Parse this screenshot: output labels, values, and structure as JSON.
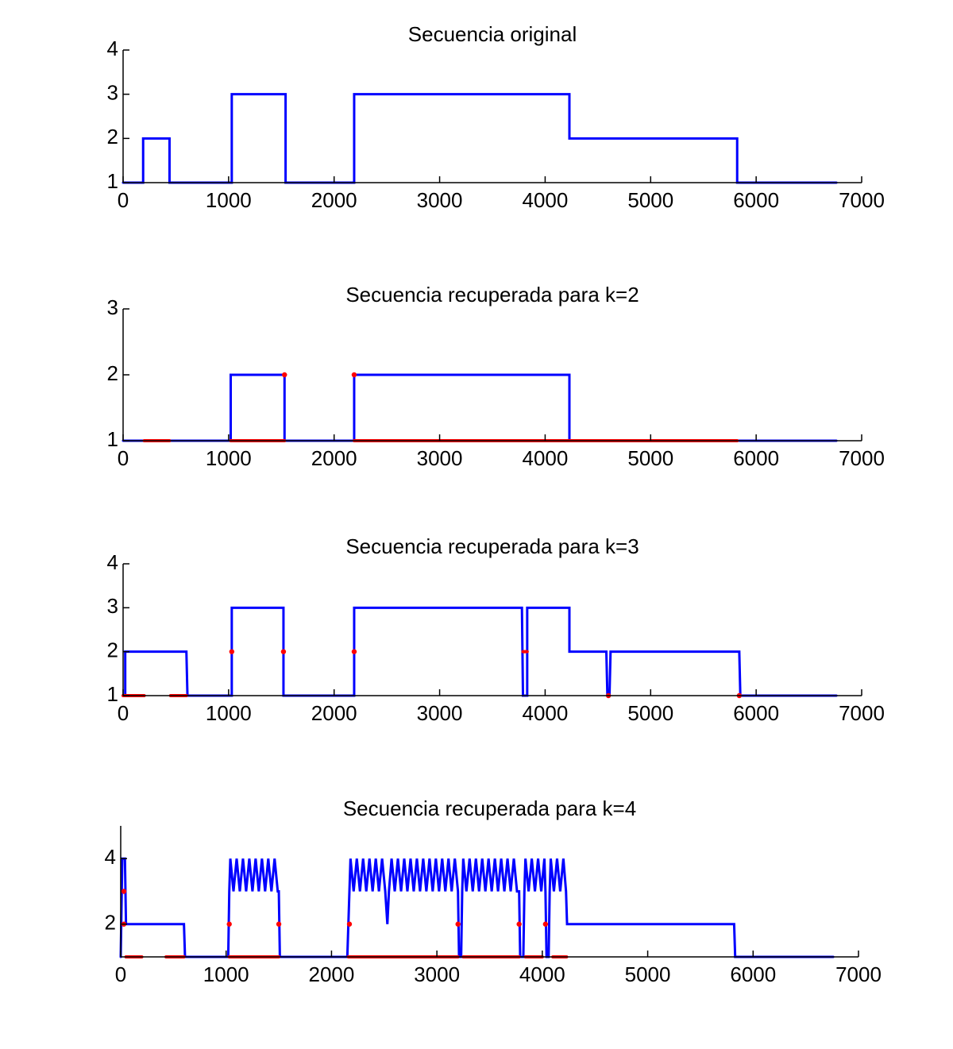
{
  "chart_data": [
    {
      "type": "line",
      "title": "Secuencia original",
      "xlim": [
        0,
        7000
      ],
      "xticks": [
        0,
        1000,
        2000,
        3000,
        4000,
        5000,
        6000,
        7000
      ],
      "ylim": [
        1,
        4
      ],
      "yticks": [
        1,
        2,
        3,
        4
      ],
      "series": [
        {
          "color": "#0000ff",
          "linewidth": 3,
          "x": [
            0,
            190,
            190,
            440,
            440,
            1030,
            1030,
            1540,
            1540,
            2190,
            2190,
            4230,
            4230,
            5820,
            5820,
            6760
          ],
          "values": [
            1,
            1,
            2,
            2,
            1,
            1,
            3,
            3,
            1,
            1,
            3,
            3,
            2,
            2,
            1,
            1
          ]
        }
      ]
    },
    {
      "type": "line",
      "title": "Secuencia recuperada para k=2",
      "xlim": [
        0,
        7000
      ],
      "xticks": [
        0,
        1000,
        2000,
        3000,
        4000,
        5000,
        6000,
        7000
      ],
      "ylim": [
        1,
        3
      ],
      "yticks": [
        1,
        2,
        3
      ],
      "series": [
        {
          "color": "#0000ff",
          "linewidth": 3,
          "x": [
            0,
            1020,
            1020,
            1530,
            1530,
            2190,
            2190,
            4230,
            4230,
            6760
          ],
          "values": [
            1,
            1,
            2,
            2,
            1,
            1,
            2,
            2,
            1,
            1
          ]
        },
        {
          "color": "#ff0000",
          "linewidth": 4,
          "x": [
            200,
            440,
            null,
            1020,
            1530,
            null,
            1530,
            null,
            2190,
            null,
            2190,
            5820
          ],
          "values": [
            1,
            1,
            null,
            1,
            1,
            null,
            2,
            null,
            2,
            null,
            1,
            1
          ]
        }
      ]
    },
    {
      "type": "line",
      "title": "Secuencia recuperada para k=3",
      "xlim": [
        0,
        7000
      ],
      "xticks": [
        0,
        1000,
        2000,
        3000,
        4000,
        5000,
        6000,
        7000
      ],
      "ylim": [
        1,
        4
      ],
      "yticks": [
        1,
        2,
        3,
        4
      ],
      "series": [
        {
          "color": "#0000ff",
          "linewidth": 3,
          "x": [
            0,
            20,
            20,
            600,
            610,
            1030,
            1030,
            1520,
            1520,
            2190,
            2190,
            3780,
            3790,
            3830,
            3830,
            4230,
            4230,
            4580,
            4590,
            4610,
            4620,
            5840,
            5850,
            6760
          ],
          "values": [
            1,
            1,
            2,
            2,
            1,
            1,
            3,
            3,
            1,
            1,
            3,
            3,
            1,
            1,
            3,
            3,
            2,
            2,
            1,
            1,
            2,
            2,
            1,
            1
          ]
        },
        {
          "color": "#ff0000",
          "linewidth": 4,
          "x": [
            0,
            200,
            null,
            450,
            600,
            null,
            1030,
            null,
            1520,
            null,
            2190,
            null,
            3790,
            3830,
            null,
            4600,
            null,
            5840
          ],
          "values": [
            1,
            1,
            null,
            1,
            1,
            null,
            2,
            null,
            2,
            null,
            2,
            null,
            2,
            2,
            null,
            1,
            null,
            1
          ]
        }
      ]
    },
    {
      "type": "line",
      "title": "Secuencia recuperada para k=4",
      "xlim": [
        0,
        7000
      ],
      "xticks": [
        0,
        1000,
        2000,
        3000,
        4000,
        5000,
        6000,
        7000
      ],
      "ylim": [
        1,
        5
      ],
      "yticks": [
        2,
        4
      ],
      "series": [
        {
          "color": "#0000ff",
          "linewidth": 3,
          "x": [
            0,
            15,
            40,
            50,
            600,
            610,
            1020,
            1030,
            1040,
            1070,
            1100,
            1130,
            1160,
            1190,
            1220,
            1250,
            1280,
            1310,
            1340,
            1370,
            1400,
            1430,
            1460,
            1490,
            1500,
            1510,
            2150,
            2170,
            2180,
            2210,
            2240,
            2270,
            2300,
            2330,
            2360,
            2390,
            2420,
            2450,
            2480,
            2510,
            2530,
            2545,
            2570,
            2600,
            2630,
            2660,
            2690,
            2720,
            2750,
            2780,
            2810,
            2840,
            2870,
            2900,
            2930,
            2960,
            2990,
            3020,
            3050,
            3080,
            3110,
            3140,
            3170,
            3200,
            3210,
            3230,
            3240,
            3250,
            3280,
            3310,
            3340,
            3370,
            3400,
            3430,
            3460,
            3490,
            3520,
            3550,
            3580,
            3610,
            3640,
            3670,
            3700,
            3730,
            3760,
            3780,
            3790,
            3820,
            3830,
            3840,
            3870,
            3900,
            3930,
            3960,
            3990,
            4020,
            4030,
            4040,
            4060,
            4070,
            4080,
            4110,
            4140,
            4170,
            4200,
            4225,
            4235,
            5820,
            5830,
            6760
          ],
          "values": [
            1,
            4,
            4,
            2,
            2,
            1,
            1,
            3,
            4,
            3,
            4,
            3,
            4,
            3,
            4,
            3,
            4,
            3,
            4,
            3,
            4,
            3,
            4,
            3,
            3,
            1,
            1,
            3,
            4,
            3,
            4,
            3,
            4,
            3,
            4,
            3,
            4,
            3,
            4,
            3,
            2,
            3,
            4,
            3,
            4,
            3,
            4,
            3,
            4,
            3,
            4,
            3,
            4,
            3,
            4,
            3,
            4,
            3,
            4,
            3,
            4,
            3,
            4,
            3,
            1,
            1,
            3,
            4,
            3,
            4,
            3,
            4,
            3,
            4,
            3,
            4,
            3,
            4,
            3,
            4,
            3,
            4,
            3,
            4,
            3,
            3,
            1,
            1,
            3,
            4,
            3,
            4,
            3,
            4,
            3,
            4,
            3,
            1,
            1,
            3,
            4,
            3,
            4,
            3,
            4,
            3,
            2,
            2,
            1,
            1
          ]
        },
        {
          "color": "#ff0000",
          "linewidth": 4,
          "x": [
            30,
            null,
            30,
            null,
            50,
            200,
            null,
            430,
            600,
            null,
            1030,
            null,
            1030,
            1500,
            null,
            1500,
            null,
            2170,
            null,
            2160,
            3200,
            null,
            3200,
            null,
            3250,
            3780,
            null,
            3780,
            null,
            3840,
            4000,
            null,
            4030,
            null,
            4100,
            4230
          ],
          "values": [
            3,
            null,
            2,
            null,
            1,
            1,
            null,
            1,
            1,
            null,
            2,
            null,
            1,
            1,
            null,
            2,
            null,
            2,
            null,
            1,
            1,
            null,
            2,
            null,
            1,
            1,
            null,
            2,
            null,
            1,
            1,
            null,
            2,
            null,
            1,
            1
          ]
        }
      ]
    }
  ]
}
